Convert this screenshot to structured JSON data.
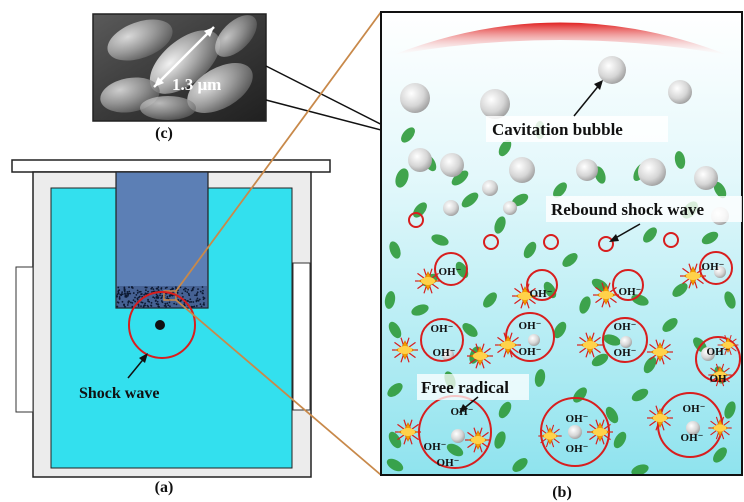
{
  "panels": {
    "a": {
      "caption": "(a)",
      "shock_wave_label": "Shock wave"
    },
    "b": {
      "caption": "(b)",
      "cavitation_bubble_label": "Cavitation bubble",
      "rebound_shock_wave_label": "Rebound shock wave",
      "free_radical_label": "Free radical",
      "radical_symbol": "OH⁻",
      "radical_symbol_short": "OH"
    },
    "c": {
      "caption": "(c)",
      "scale_label": "1.3 μm"
    }
  },
  "colors": {
    "water": "#33e0ee",
    "water_deep": "#b9eef3",
    "probe": "#5c7fb5",
    "bacteria": "#2f9a3a",
    "shock_ring": "#d81e1e",
    "leader_line": "#c8894a",
    "burst": "#f2a300"
  }
}
